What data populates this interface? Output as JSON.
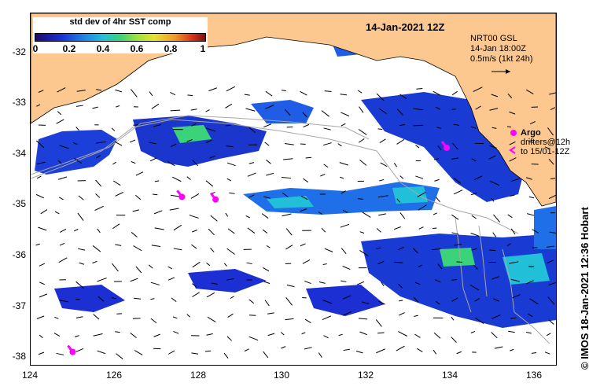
{
  "header": {
    "date_title": "14-Jan-2021 12Z"
  },
  "legend": {
    "title": "std dev of 4hr SST comp",
    "ticks": [
      "0",
      "0.2",
      "0.4",
      "0.6",
      "0.8",
      "1"
    ],
    "colormap": [
      "#1a0a6e",
      "#1b2fd2",
      "#1f7fe6",
      "#22c0d8",
      "#3ad37a",
      "#9fe23a",
      "#e8e12d",
      "#f39a24",
      "#d9341e",
      "#7a1010"
    ]
  },
  "vector_info": {
    "line1": "NRT00 GSL",
    "line2": "14-Jan 18:00Z",
    "line3": "0.5m/s (1kt 24h)"
  },
  "argo_info": {
    "label": "Argo",
    "line2": "drifters@12h",
    "line3": "to 15/01-12Z"
  },
  "credit": "© IMOS 18-Jan-2021 12:36 Hobart",
  "colors": {
    "land": "#fdc890",
    "drifter": "#ff00ff",
    "bathymetry": "#a8a8a8"
  },
  "chart_data": {
    "type": "map",
    "x_ticks": [
      "124",
      "126",
      "128",
      "130",
      "132",
      "134",
      "136"
    ],
    "y_ticks": [
      "-32",
      "-33",
      "-34",
      "-35",
      "-36",
      "-37",
      "-38"
    ],
    "xlim": [
      124,
      136.5
    ],
    "ylim": [
      -38.1,
      -31.3
    ],
    "drifters": [
      {
        "lon": 127.6,
        "lat": -34.85
      },
      {
        "lon": 128.4,
        "lat": -34.9
      },
      {
        "lon": 133.9,
        "lat": -33.9
      },
      {
        "lon": 125.0,
        "lat": -37.85
      }
    ]
  }
}
